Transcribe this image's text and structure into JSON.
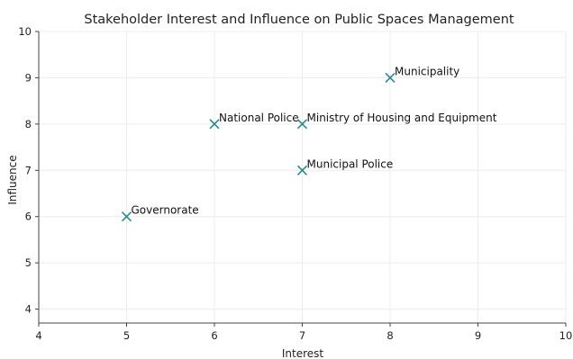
{
  "chart_data": {
    "type": "scatter",
    "title": "Stakeholder Interest and Influence on Public Spaces Management",
    "xlabel": "Interest",
    "ylabel": "Influence",
    "xlim": [
      4,
      10
    ],
    "ylim": [
      3.7,
      10
    ],
    "xticks": [
      4,
      5,
      6,
      7,
      8,
      9,
      10
    ],
    "yticks": [
      4,
      5,
      6,
      7,
      8,
      9,
      10
    ],
    "grid": true,
    "marker": "x",
    "marker_color": "#2a8a8a",
    "points": [
      {
        "label": "Municipality",
        "x": 8,
        "y": 9
      },
      {
        "label": "National Police",
        "x": 6,
        "y": 8
      },
      {
        "label": "Ministry of Housing and Equipment",
        "x": 7,
        "y": 8
      },
      {
        "label": "Municipal Police",
        "x": 7,
        "y": 7
      },
      {
        "label": "Governorate",
        "x": 5,
        "y": 6
      }
    ]
  }
}
